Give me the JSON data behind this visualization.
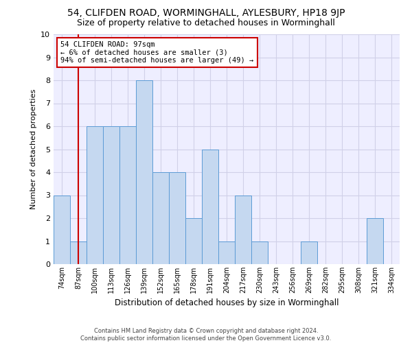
{
  "title": "54, CLIFDEN ROAD, WORMINGHALL, AYLESBURY, HP18 9JP",
  "subtitle": "Size of property relative to detached houses in Worminghall",
  "xlabel": "Distribution of detached houses by size in Worminghall",
  "ylabel": "Number of detached properties",
  "footer_line1": "Contains HM Land Registry data © Crown copyright and database right 2024.",
  "footer_line2": "Contains public sector information licensed under the Open Government Licence v3.0.",
  "categories": [
    "74sqm",
    "87sqm",
    "100sqm",
    "113sqm",
    "126sqm",
    "139sqm",
    "152sqm",
    "165sqm",
    "178sqm",
    "191sqm",
    "204sqm",
    "217sqm",
    "230sqm",
    "243sqm",
    "256sqm",
    "269sqm",
    "282sqm",
    "295sqm",
    "308sqm",
    "321sqm",
    "334sqm"
  ],
  "values": [
    3,
    1,
    6,
    6,
    6,
    8,
    4,
    4,
    2,
    5,
    1,
    3,
    1,
    0,
    0,
    1,
    0,
    0,
    0,
    2,
    0
  ],
  "bar_color": "#c5d8f0",
  "bar_edge_color": "#5b9bd5",
  "highlight_bar_index": 1,
  "annotation_title": "54 CLIFDEN ROAD: 97sqm",
  "annotation_line1": "← 6% of detached houses are smaller (3)",
  "annotation_line2": "94% of semi-detached houses are larger (49) →",
  "vline_color": "#cc0000",
  "annotation_box_color": "#cc0000",
  "ylim": [
    0,
    10
  ],
  "yticks": [
    0,
    1,
    2,
    3,
    4,
    5,
    6,
    7,
    8,
    9,
    10
  ],
  "grid_color": "#d0d0e8",
  "background_color": "#eeeeff",
  "title_fontsize": 10,
  "subtitle_fontsize": 9,
  "ylabel_fontsize": 8,
  "xlabel_fontsize": 8.5,
  "footer_fontsize": 6,
  "annotation_fontsize": 7.5,
  "ytick_fontsize": 8,
  "xtick_fontsize": 7
}
